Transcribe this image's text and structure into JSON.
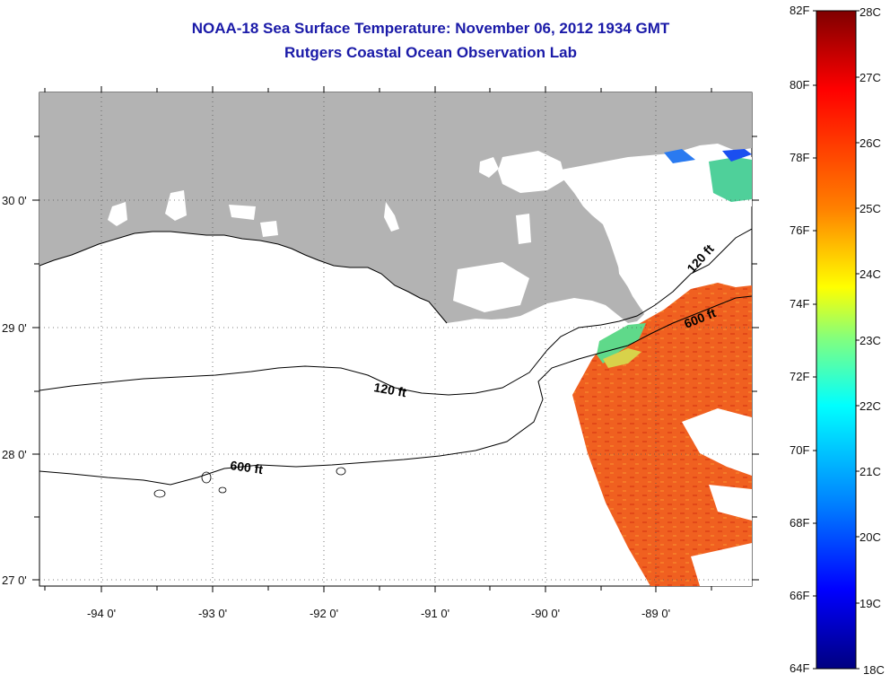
{
  "title": "NOAA-18 Sea Surface Temperature:  November 06, 2012 1934 GMT",
  "subtitle": "Rutgers Coastal Ocean Observation Lab",
  "axes": {
    "latitude_labels": [
      "30 0'",
      "29 0'",
      "28 0'",
      "27 0'"
    ],
    "longitude_labels": [
      "-94 0'",
      "-93 0'",
      "-92 0'",
      "-91 0'",
      "-90 0'",
      "-89 0'"
    ]
  },
  "contours": {
    "label_120_east": "120 ft",
    "label_600_east": "600 ft",
    "label_120_west": "120 ft",
    "label_600_west": "600 ft"
  },
  "colorbar": {
    "fahrenheit": [
      "82F",
      "80F",
      "78F",
      "76F",
      "74F",
      "72F",
      "70F",
      "68F",
      "66F",
      "64F"
    ],
    "celsius": [
      "28C",
      "27C",
      "26C",
      "25C",
      "24C",
      "23C",
      "22C",
      "21C",
      "20C",
      "19C",
      "18C"
    ],
    "colors": [
      "#7f0000",
      "#ff0000",
      "#ff8000",
      "#ffff00",
      "#80ff80",
      "#00ffff",
      "#0080ff",
      "#0000ff",
      "#000080"
    ]
  },
  "colors": {
    "land": "#b3b3b3",
    "title": "#1a1aa8",
    "sst_main": "#f25a1e"
  }
}
